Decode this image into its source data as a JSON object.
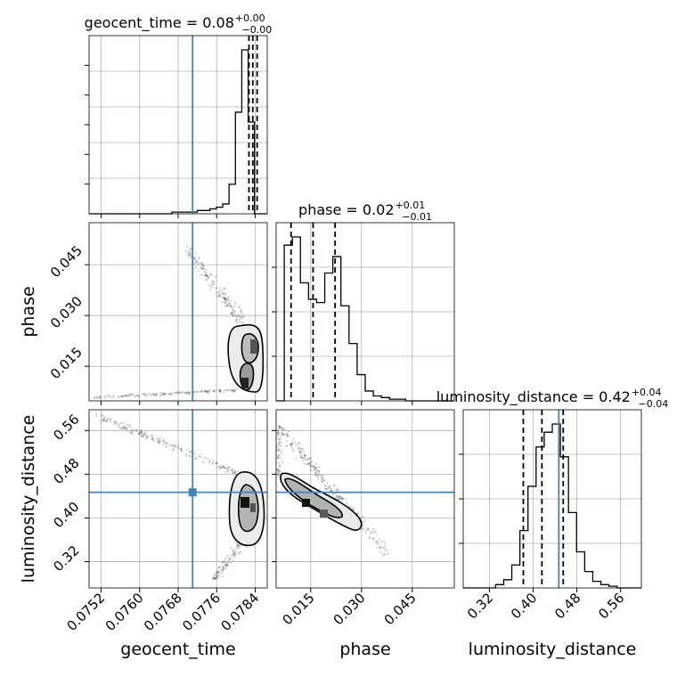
{
  "chart_data": {
    "type": "corner",
    "parameters": [
      "geocent_time",
      "phase",
      "luminosity_distance"
    ],
    "axis_labels": {
      "x": [
        "geocent_time",
        "phase",
        "luminosity_distance"
      ],
      "y": [
        "phase",
        "luminosity_distance"
      ]
    },
    "titles": [
      {
        "param": "geocent_time",
        "text": "geocent_time = 0.08",
        "plus": "+0.00",
        "minus": "−0.00"
      },
      {
        "param": "phase",
        "text": "phase = 0.02",
        "plus": "+0.01",
        "minus": "−0.01"
      },
      {
        "param": "luminosity_distance",
        "text": "luminosity_distance = 0.42",
        "plus": "+0.04",
        "minus": "−0.04"
      }
    ],
    "ranges": {
      "geocent_time": [
        0.07495,
        0.07865
      ],
      "phase": [
        0.0048,
        0.0574
      ],
      "luminosity_distance": [
        0.272,
        0.598
      ]
    },
    "ticks": {
      "geocent_time": [
        "0.0752",
        "0.0760",
        "0.0768",
        "0.0776",
        "0.0784"
      ],
      "phase": [
        "0.015",
        "0.030",
        "0.045"
      ],
      "luminosity_distance": [
        "0.32",
        "0.40",
        "0.48",
        "0.56"
      ]
    },
    "truths": {
      "geocent_time": 0.0771,
      "phase": null,
      "luminosity_distance": 0.447
    },
    "quantiles": {
      "geocent_time": [
        0.07827,
        0.07835,
        0.07844
      ],
      "phase": [
        0.0092,
        0.0157,
        0.0222
      ],
      "luminosity_distance": [
        0.382,
        0.416,
        0.455
      ]
    },
    "histograms": {
      "geocent_time": [
        0,
        0,
        0,
        0,
        0,
        0,
        0,
        0,
        0,
        0,
        0,
        0,
        0,
        1,
        1,
        1,
        1,
        2,
        2,
        3,
        4,
        6,
        18,
        62,
        100,
        56,
        0,
        0
      ],
      "phase": [
        0,
        95,
        100,
        72,
        62,
        60,
        78,
        88,
        58,
        35,
        16,
        6,
        3,
        2,
        1,
        1,
        0,
        0,
        0,
        0,
        0,
        0
      ],
      "luminosity_distance": [
        0,
        0,
        0,
        0,
        2,
        5,
        14,
        35,
        62,
        86,
        95,
        100,
        80,
        46,
        22,
        10,
        4,
        2,
        1,
        0,
        0,
        0
      ]
    },
    "grid": true
  }
}
